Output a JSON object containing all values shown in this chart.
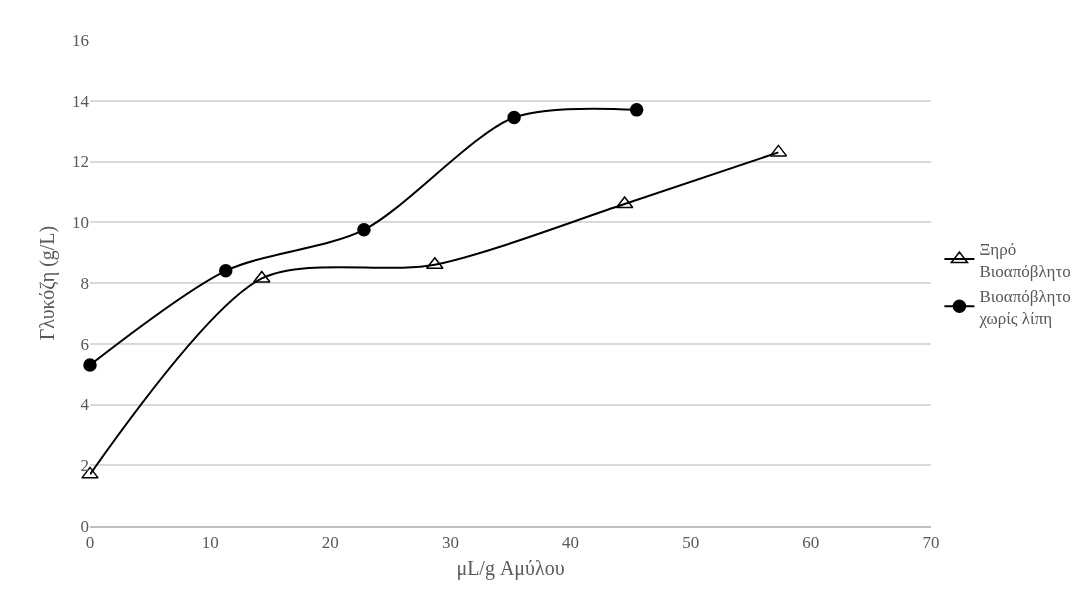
{
  "chart_data": {
    "type": "line",
    "xlabel": "μL/g Αμύλου",
    "ylabel": "Γλυκόζη (g/L)",
    "xlim": [
      0,
      70
    ],
    "xticks": [
      0,
      10,
      20,
      30,
      40,
      50,
      60,
      70
    ],
    "ylim": [
      0,
      16
    ],
    "yticks": [
      0,
      2,
      4,
      6,
      8,
      10,
      12,
      14,
      16
    ],
    "grid": "y",
    "legend": "right",
    "line_style": "solid",
    "series": [
      {
        "name": "Ξηρό Βιοαπόβλητο",
        "color": "#000000",
        "marker": "triangle",
        "x": [
          0,
          14.3,
          28.7,
          44.5,
          57.3
        ],
        "values": [
          1.7,
          8.15,
          8.6,
          10.6,
          12.3
        ]
      },
      {
        "name": "Βιοαπόβλητο χωρίς λίπη",
        "color": "#000000",
        "marker": "circle",
        "x": [
          0,
          11.3,
          22.8,
          35.3,
          45.5
        ],
        "values": [
          5.3,
          8.4,
          9.75,
          13.45,
          13.7
        ]
      }
    ]
  }
}
